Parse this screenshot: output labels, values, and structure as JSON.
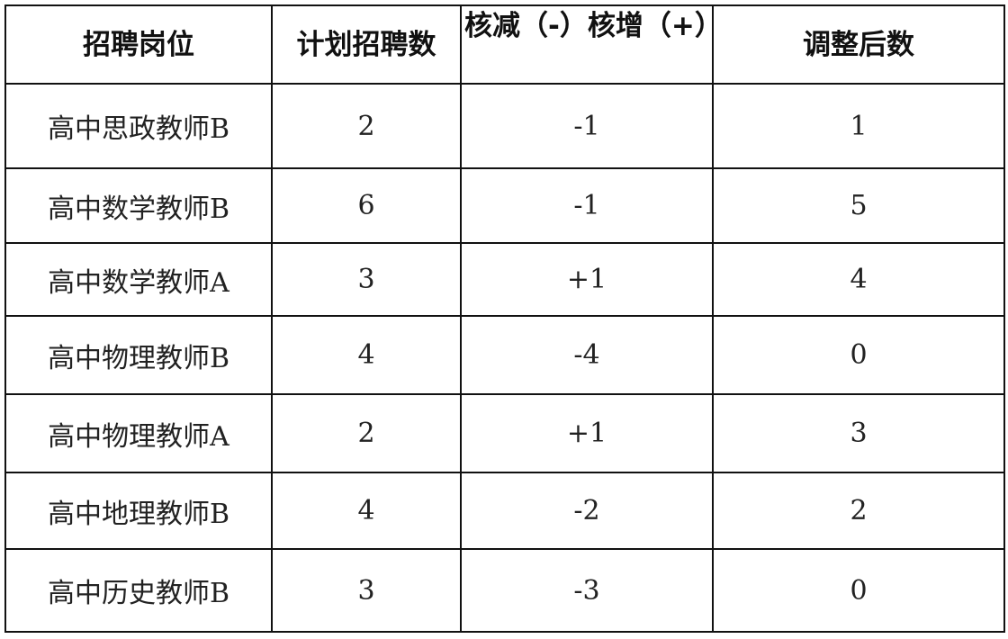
{
  "table": {
    "headers": [
      "招聘岗位",
      "计划招聘数",
      "核减（-）核增（+）",
      "调整后数"
    ],
    "rows": [
      [
        "高中思政教师B",
        "2",
        "-1",
        "1"
      ],
      [
        "高中数学教师B",
        "6",
        "-1",
        "5"
      ],
      [
        "高中数学教师A",
        "3",
        "+1",
        "4"
      ],
      [
        "高中物理教师B",
        "4",
        "-4",
        "0"
      ],
      [
        "高中物理教师A",
        "2",
        "+1",
        "3"
      ],
      [
        "高中地理教师B",
        "4",
        "-2",
        "2"
      ],
      [
        "高中历史教师B",
        "3",
        "-3",
        "0"
      ]
    ]
  }
}
